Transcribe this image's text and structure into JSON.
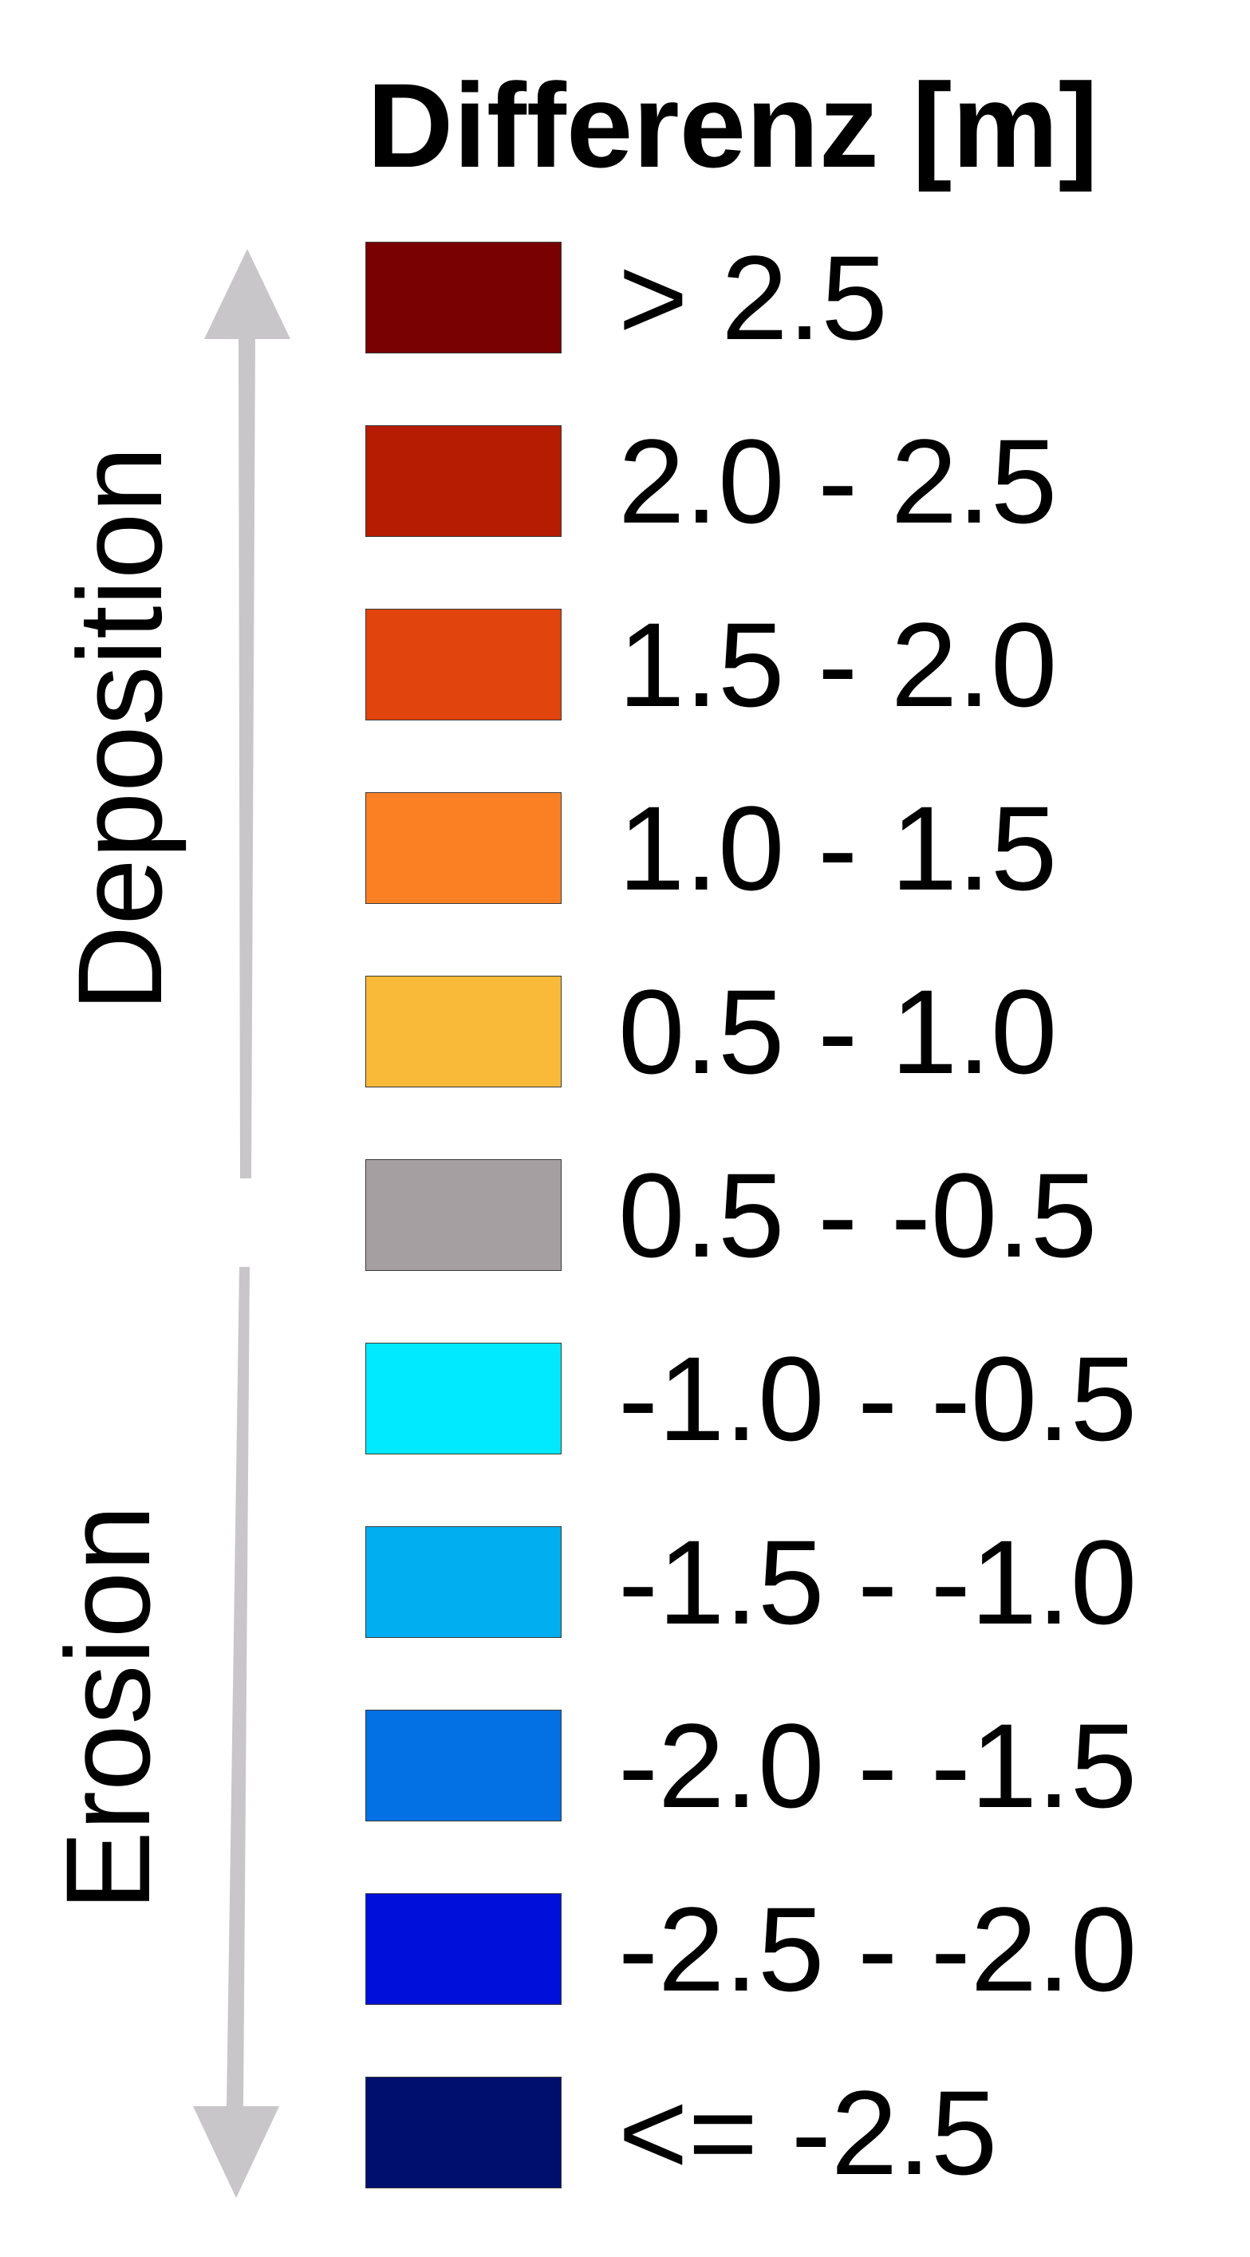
{
  "legend": {
    "title": "Differenz [m]",
    "deposition_label": "Deposition",
    "erosion_label": "Erosion",
    "arrow_color": "#c8c6c9",
    "classes": [
      {
        "label": "> 2.5",
        "color": "#7a0102"
      },
      {
        "label": "2.0 - 2.5",
        "color": "#b51c02"
      },
      {
        "label": "1.5 - 2.0",
        "color": "#e1440c"
      },
      {
        "label": "1.0 - 1.5",
        "color": "#fb8023"
      },
      {
        "label": "0.5 - 1.0",
        "color": "#f9b939"
      },
      {
        "label": "0.5 - -0.5",
        "color": "#a59fa2"
      },
      {
        "label": "-1.0 - -0.5",
        "color": "#00eaff"
      },
      {
        "label": "-1.5 - -1.0",
        "color": "#01aeef"
      },
      {
        "label": "-2.0 - -1.5",
        "color": "#0370e4"
      },
      {
        "label": "-2.5 - -2.0",
        "color": "#0010da"
      },
      {
        "label": "<= -2.5",
        "color": "#000e6d"
      }
    ]
  }
}
